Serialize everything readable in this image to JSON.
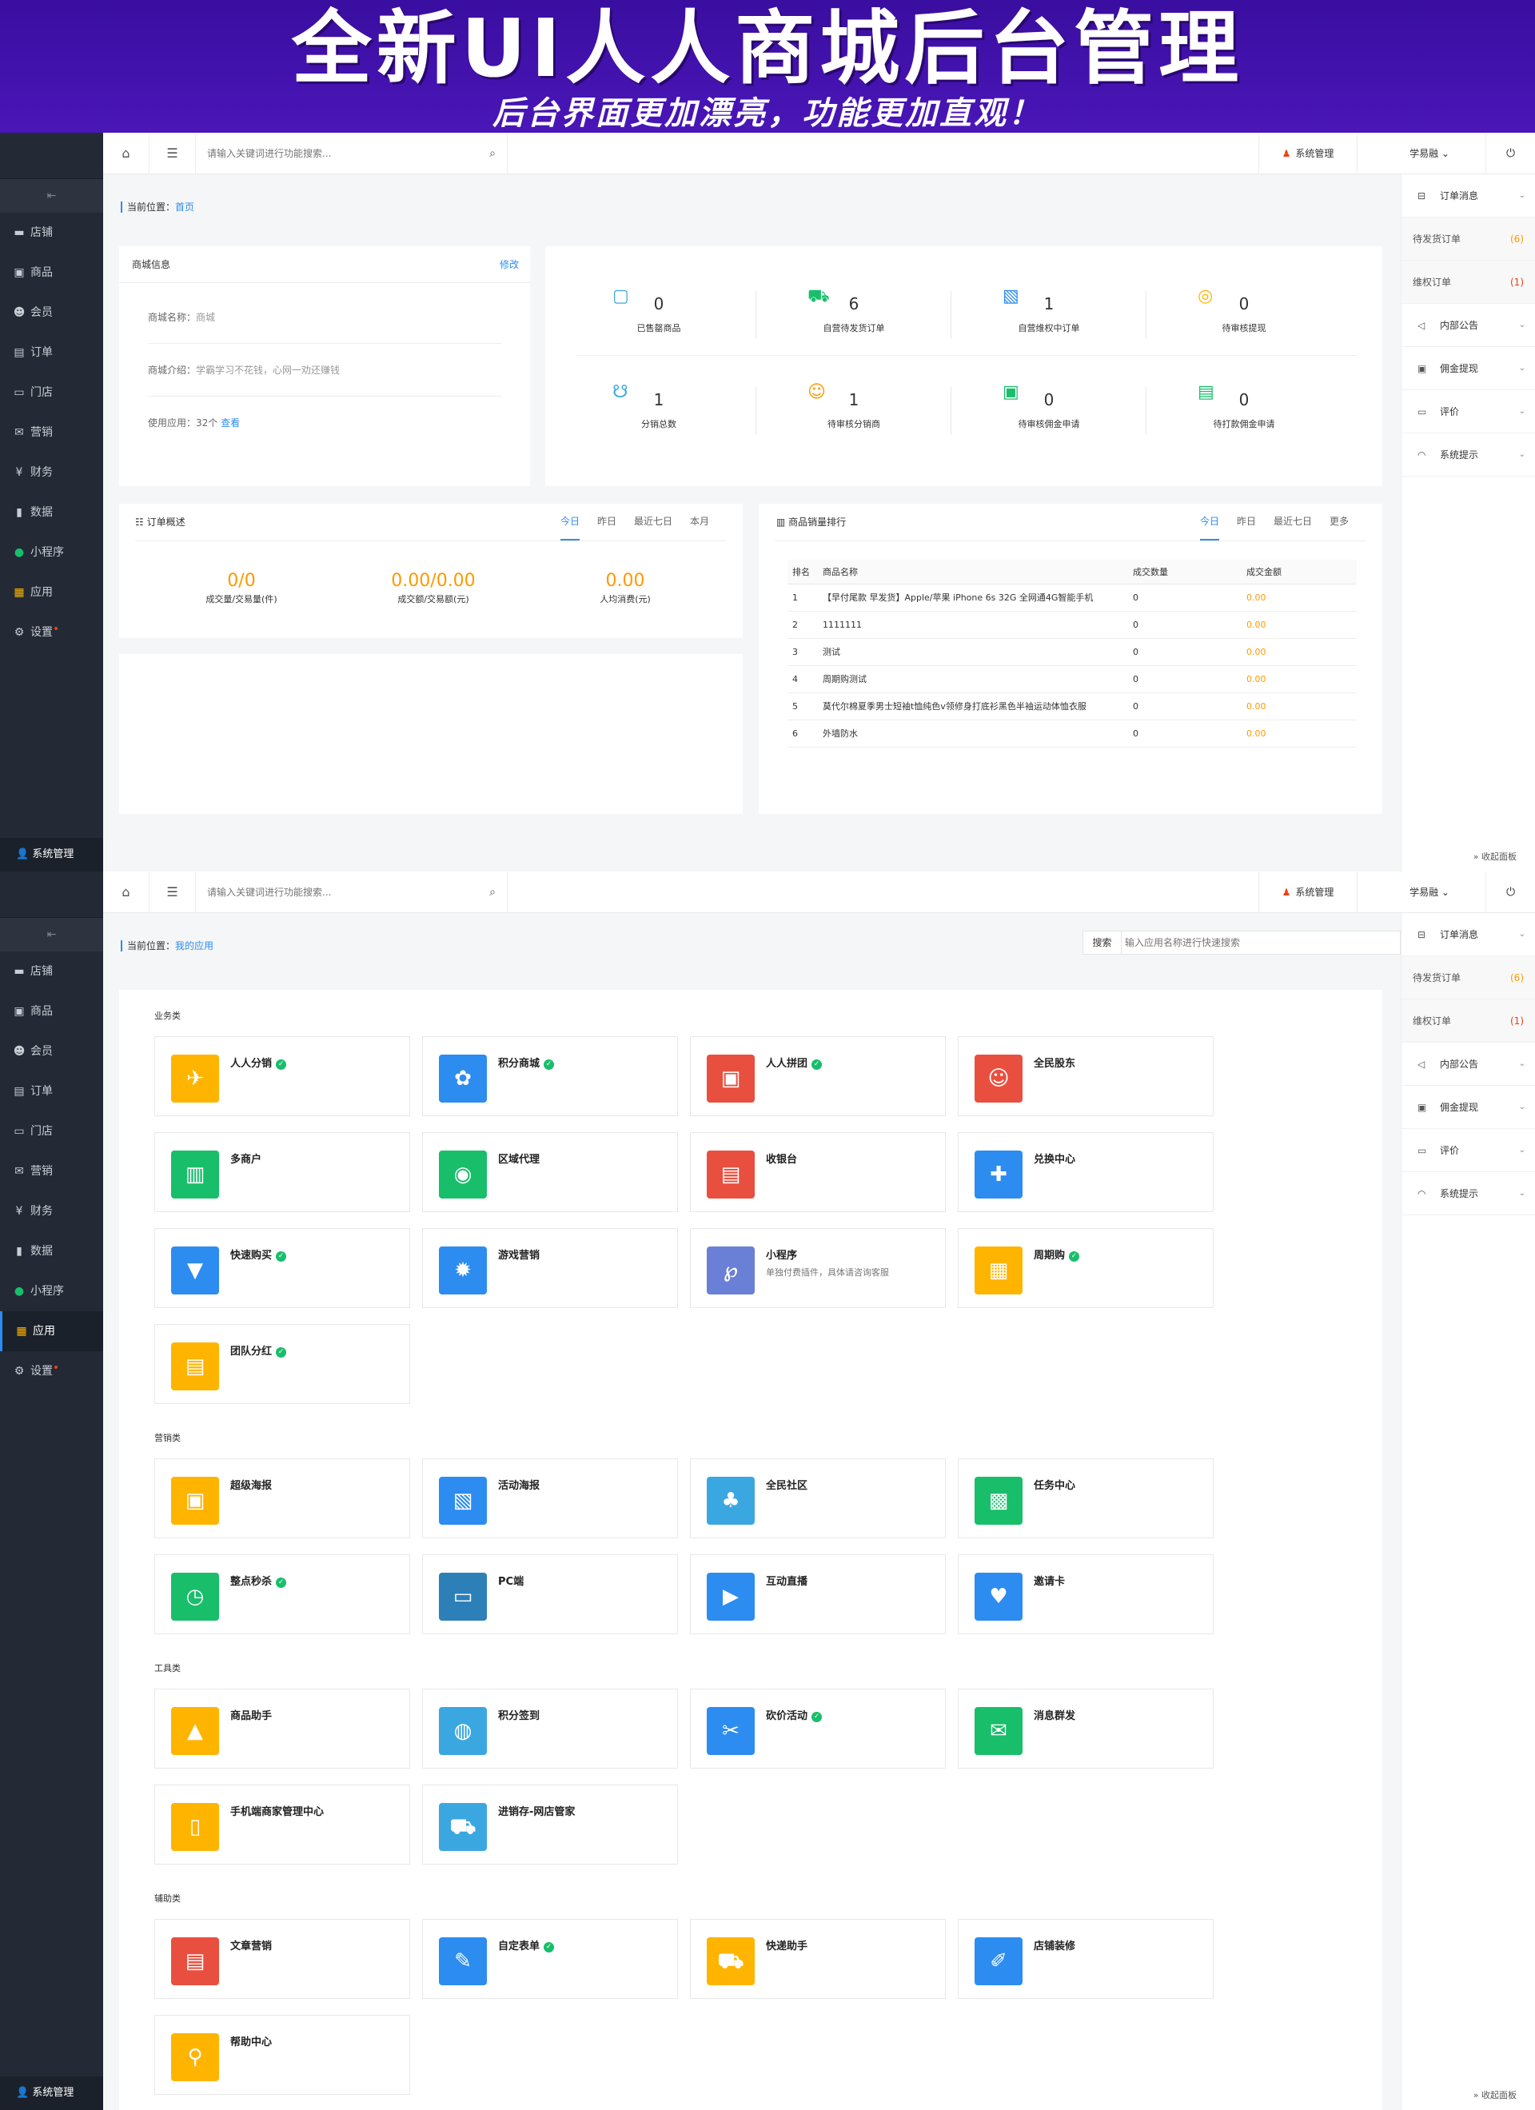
{
  "banner": {
    "title": "全新UI人人商城后台管理",
    "subtitle": "后台界面更加漂亮，功能更加直观！"
  },
  "nav": {
    "items": [
      {
        "label": "店铺",
        "icon": "store-icon"
      },
      {
        "label": "商品",
        "icon": "goods-icon"
      },
      {
        "label": "会员",
        "icon": "member-icon"
      },
      {
        "label": "订单",
        "icon": "order-icon"
      },
      {
        "label": "门店",
        "icon": "shop-icon"
      },
      {
        "label": "营销",
        "icon": "marketing-icon"
      },
      {
        "label": "财务",
        "icon": "finance-icon"
      },
      {
        "label": "数据",
        "icon": "data-icon"
      },
      {
        "label": "小程序",
        "icon": "miniprogram-icon"
      },
      {
        "label": "应用",
        "icon": "apps-icon"
      },
      {
        "label": "设置",
        "icon": "settings-icon"
      }
    ],
    "bottom": "系统管理"
  },
  "topbar": {
    "search_placeholder": "请输入关键词进行功能搜索...",
    "sys_label": "系统管理",
    "user_label": "学易融 ⌄"
  },
  "right": {
    "order_msg": "订单消息",
    "pending_ship": "待发货订单",
    "pending_ship_count": "(6)",
    "refund": "维权订单",
    "refund_count": "(1)",
    "notice": "内部公告",
    "commission": "佣金提现",
    "review": "评价",
    "sys_tip": "系统提示",
    "collapse": "» 收起面板"
  },
  "home": {
    "crumb_prefix": "当前位置：",
    "crumb_current": "首页",
    "shop_info": {
      "title": "商城信息",
      "edit": "修改",
      "name_label": "商城名称：",
      "name_value": "商城",
      "intro_label": "商城介绍：",
      "intro_value": "学霸学习不花钱，心网一劝还赚钱",
      "apps_label": "使用应用：32个 ",
      "apps_link": "查看"
    },
    "stats": [
      {
        "value": "0",
        "label": "已售罄商品"
      },
      {
        "value": "6",
        "label": "自营待发货订单"
      },
      {
        "value": "1",
        "label": "自营维权中订单"
      },
      {
        "value": "0",
        "label": "待审核提现"
      },
      {
        "value": "1",
        "label": "分销总数"
      },
      {
        "value": "1",
        "label": "待审核分销商"
      },
      {
        "value": "0",
        "label": "待审核佣金申请"
      },
      {
        "value": "0",
        "label": "待打款佣金申请"
      }
    ],
    "order_overview": {
      "title": "订单概述",
      "tabs": [
        "今日",
        "昨日",
        "最近七日",
        "本月"
      ],
      "metrics": [
        {
          "value": "0/0",
          "label": "成交量/交易量(件)"
        },
        {
          "value": "0.00/0.00",
          "label": "成交额/交易额(元)"
        },
        {
          "value": "0.00",
          "label": "人均消费(元)"
        }
      ]
    },
    "sales_rank": {
      "title": "商品销量排行",
      "tabs": [
        "今日",
        "昨日",
        "最近七日",
        "更多"
      ],
      "headers": [
        "排名",
        "商品名称",
        "成交数量",
        "成交金额"
      ],
      "rows": [
        [
          "1",
          "【早付尾款 早发货】Apple/苹果 iPhone 6s 32G 全网通4G智能手机",
          "0",
          "0.00"
        ],
        [
          "2",
          "1111111",
          "0",
          "0.00"
        ],
        [
          "3",
          "测试",
          "0",
          "0.00"
        ],
        [
          "4",
          "周期购测试",
          "0",
          "0.00"
        ],
        [
          "5",
          "莫代尔棉夏季男士短袖t恤纯色v领修身打底衫黑色半袖运动体恤衣服",
          "0",
          "0.00"
        ],
        [
          "6",
          "外墙防水",
          "0",
          "0.00"
        ]
      ]
    }
  },
  "apps_page": {
    "crumb_prefix": "当前位置：",
    "crumb_current": "我的应用",
    "search_btn": "搜索",
    "search_placeholder": "输入应用名称进行快速搜索",
    "categories": [
      {
        "name": "业务类",
        "apps": [
          {
            "name": "人人分销",
            "check": true,
            "icon": "distribution-icon",
            "color": "#ffb400"
          },
          {
            "name": "积分商城",
            "check": true,
            "icon": "points-mall-icon",
            "color": "#2d8cf0"
          },
          {
            "name": "人人拼团",
            "check": true,
            "icon": "group-buy-icon",
            "color": "#e94f3f"
          },
          {
            "name": "全民股东",
            "check": false,
            "icon": "shareholder-icon",
            "color": "#e94f3f"
          },
          {
            "name": "多商户",
            "check": false,
            "icon": "merchant-icon",
            "color": "#19be6b"
          },
          {
            "name": "区域代理",
            "check": false,
            "icon": "region-agent-icon",
            "color": "#19be6b"
          },
          {
            "name": "收银台",
            "check": false,
            "icon": "cashier-icon",
            "color": "#e94f3f"
          },
          {
            "name": "兑换中心",
            "check": false,
            "icon": "exchange-icon",
            "color": "#2d8cf0"
          },
          {
            "name": "快速购买",
            "check": true,
            "icon": "quick-buy-icon",
            "color": "#2d8cf0"
          },
          {
            "name": "游戏营销",
            "check": false,
            "icon": "game-icon",
            "color": "#2d8cf0"
          },
          {
            "name": "小程序",
            "check": false,
            "icon": "miniprogram-app-icon",
            "color": "#6a7fd6",
            "desc": "单独付费插件，具体请咨询客服"
          },
          {
            "name": "周期购",
            "check": true,
            "icon": "cycle-buy-icon",
            "color": "#ffb400"
          },
          {
            "name": "团队分红",
            "check": true,
            "icon": "team-bonus-icon",
            "color": "#ffb400"
          }
        ]
      },
      {
        "name": "营销类",
        "apps": [
          {
            "name": "超级海报",
            "check": false,
            "icon": "poster-icon",
            "color": "#ffb400"
          },
          {
            "name": "活动海报",
            "check": false,
            "icon": "activity-poster-icon",
            "color": "#2d8cf0"
          },
          {
            "name": "全民社区",
            "check": false,
            "icon": "community-icon",
            "color": "#3ba7e0"
          },
          {
            "name": "任务中心",
            "check": false,
            "icon": "task-icon",
            "color": "#19be6b"
          },
          {
            "name": "整点秒杀",
            "check": true,
            "icon": "seckill-icon",
            "color": "#19be6b"
          },
          {
            "name": "PC端",
            "check": false,
            "icon": "pc-icon",
            "color": "#2d7fb8"
          },
          {
            "name": "互动直播",
            "check": false,
            "icon": "live-icon",
            "color": "#2d8cf0"
          },
          {
            "name": "邀请卡",
            "check": false,
            "icon": "invite-card-icon",
            "color": "#2d8cf0"
          }
        ]
      },
      {
        "name": "工具类",
        "apps": [
          {
            "name": "商品助手",
            "check": false,
            "icon": "goods-helper-icon",
            "color": "#ffb400"
          },
          {
            "name": "积分签到",
            "check": false,
            "icon": "sign-in-icon",
            "color": "#3ba7e0"
          },
          {
            "name": "砍价活动",
            "check": true,
            "icon": "bargain-icon",
            "color": "#2d8cf0"
          },
          {
            "name": "消息群发",
            "check": false,
            "icon": "message-icon",
            "color": "#19be6b"
          },
          {
            "name": "手机端商家管理中心",
            "check": false,
            "icon": "mobile-manage-icon",
            "color": "#ffb400"
          },
          {
            "name": "进销存-网店管家",
            "check": false,
            "icon": "inventory-icon",
            "color": "#3ba7e0"
          }
        ]
      },
      {
        "name": "辅助类",
        "apps": [
          {
            "name": "文章营销",
            "check": false,
            "icon": "article-icon",
            "color": "#e94f3f"
          },
          {
            "name": "自定表单",
            "check": true,
            "icon": "form-icon",
            "color": "#2d8cf0"
          },
          {
            "name": "快递助手",
            "check": false,
            "icon": "express-icon",
            "color": "#ffb400"
          },
          {
            "name": "店铺装修",
            "check": false,
            "icon": "decorate-icon",
            "color": "#2d8cf0"
          },
          {
            "name": "帮助中心",
            "check": false,
            "icon": "help-icon",
            "color": "#ffb400"
          }
        ]
      }
    ]
  }
}
